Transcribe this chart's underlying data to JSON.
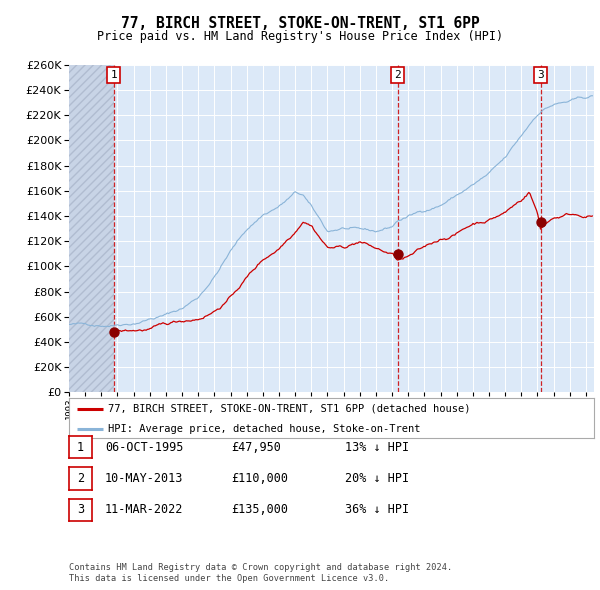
{
  "title": "77, BIRCH STREET, STOKE-ON-TRENT, ST1 6PP",
  "subtitle": "Price paid vs. HM Land Registry's House Price Index (HPI)",
  "legend_line1": "77, BIRCH STREET, STOKE-ON-TRENT, ST1 6PP (detached house)",
  "legend_line2": "HPI: Average price, detached house, Stoke-on-Trent",
  "footer1": "Contains HM Land Registry data © Crown copyright and database right 2024.",
  "footer2": "This data is licensed under the Open Government Licence v3.0.",
  "transactions": [
    {
      "label": "1",
      "date": "06-OCT-1995",
      "price": 47950,
      "hpi_pct": "13% ↓ HPI"
    },
    {
      "label": "2",
      "date": "10-MAY-2013",
      "price": 110000,
      "hpi_pct": "20% ↓ HPI"
    },
    {
      "label": "3",
      "date": "11-MAR-2022",
      "price": 135000,
      "hpi_pct": "36% ↓ HPI"
    }
  ],
  "transaction_dates_num": [
    1995.77,
    2013.36,
    2022.19
  ],
  "transaction_prices": [
    47950,
    110000,
    135000
  ],
  "ylim": [
    0,
    260000
  ],
  "yticks": [
    0,
    20000,
    40000,
    60000,
    80000,
    100000,
    120000,
    140000,
    160000,
    180000,
    200000,
    220000,
    240000,
    260000
  ],
  "xlim_start": 1993.0,
  "xlim_end": 2025.5,
  "bg_color": "#dce9f8",
  "grid_color": "#ffffff",
  "hpi_line_color": "#8ab4d8",
  "price_line_color": "#cc0000",
  "dashed_vline_color": "#cc0000",
  "marker_color": "#8b0000",
  "fig_bg": "#ffffff"
}
